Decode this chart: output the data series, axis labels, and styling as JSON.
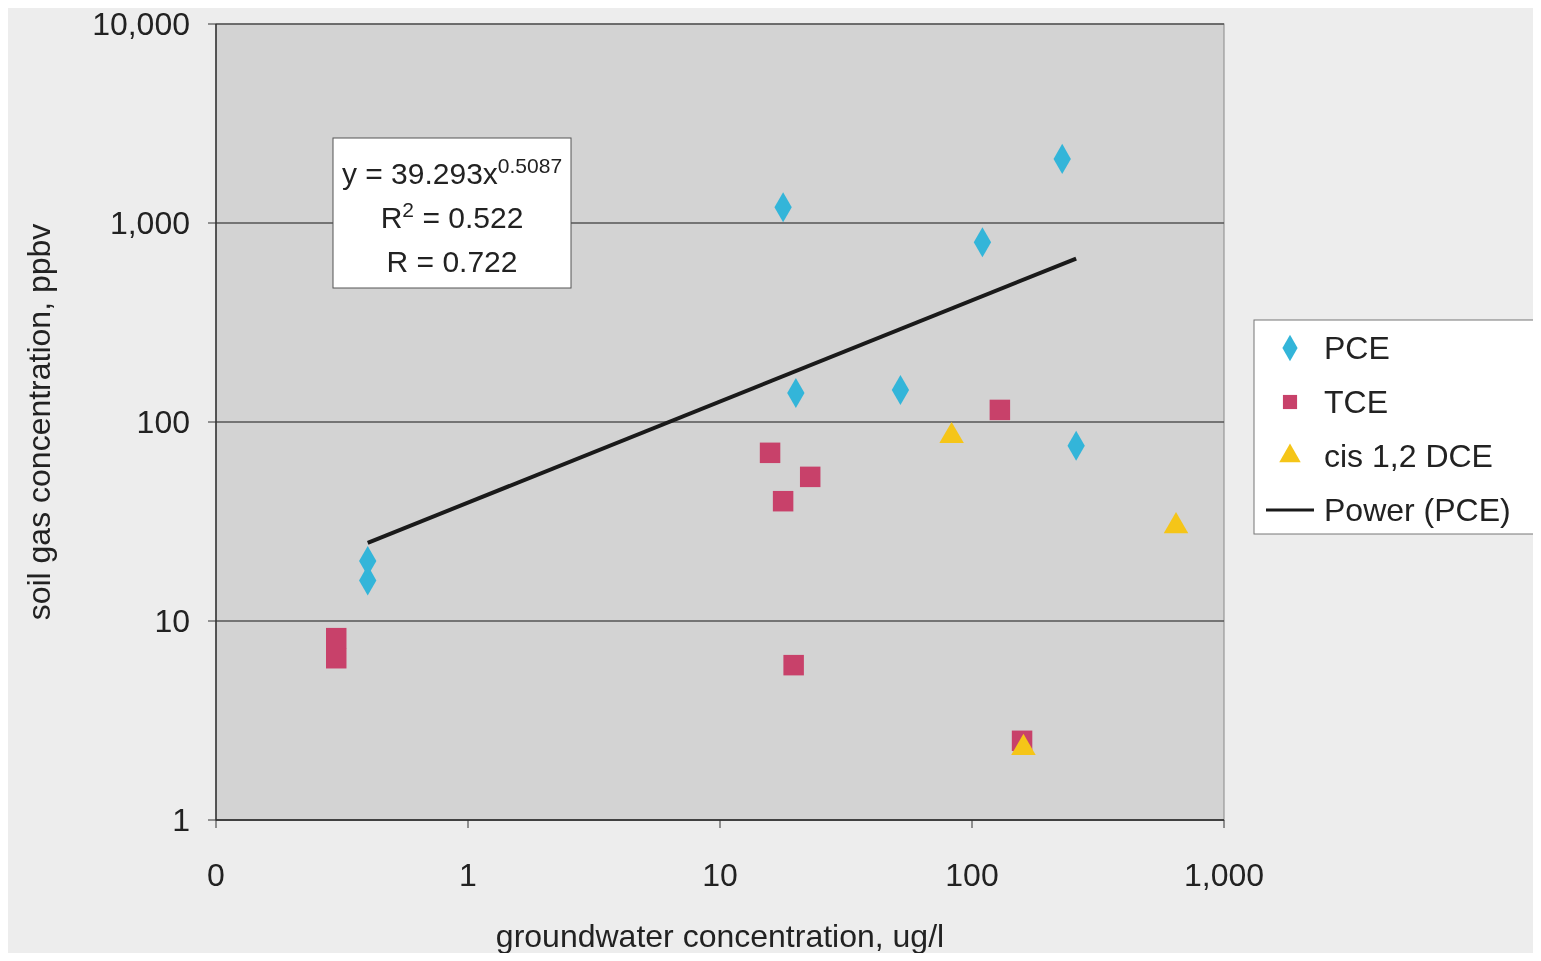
{
  "chart_data": {
    "type": "scatter",
    "xlabel": "groundwater concentration, ug/l",
    "ylabel": "soil gas concentration, ppbv",
    "log": "xy",
    "grid": "y",
    "legend": "right",
    "xlim": [
      0.1,
      1000
    ],
    "xticks": [
      {
        "value": 0.1,
        "label": "0"
      },
      1,
      10,
      100,
      {
        "value": 1000,
        "label": "1,000"
      }
    ],
    "ylim": [
      1,
      10000
    ],
    "yticks": [
      1,
      10,
      100,
      {
        "value": 1000,
        "label": "1,000"
      },
      {
        "value": 10000,
        "label": "10,000"
      }
    ],
    "annotations": [
      "y = 39.293x$^{0.5087}$",
      "R$^{2}$ = 0.522",
      "R = 0.722"
    ],
    "series": [
      {
        "name": "PCE",
        "color": "#33b5d9",
        "marker": "diamond",
        "x": [
          0.4,
          0.4,
          17.8,
          20,
          52,
          110,
          228,
          259
        ],
        "values": [
          16,
          20,
          1200,
          140,
          145,
          800,
          2100,
          76
        ]
      },
      {
        "name": "TCE",
        "color": "#c8416a",
        "marker": "square",
        "x": [
          0.3,
          0.3,
          15.8,
          17.8,
          22.8,
          19.6,
          129,
          158
        ],
        "values": [
          8.2,
          6.5,
          70,
          40,
          53,
          6,
          115,
          2.5
        ]
      },
      {
        "name": "cis 1,2 DCE",
        "color": "#f5c518",
        "marker": "triangle",
        "x": [
          83,
          645,
          160
        ],
        "values": [
          85,
          30,
          2.3
        ]
      },
      {
        "name": "Power (PCE)",
        "type": "line",
        "color": "#1a1a1a",
        "marker": "none",
        "line_style": "solid",
        "x": [
          0.4,
          259
        ],
        "values": [
          24.7,
          663
        ]
      }
    ]
  }
}
